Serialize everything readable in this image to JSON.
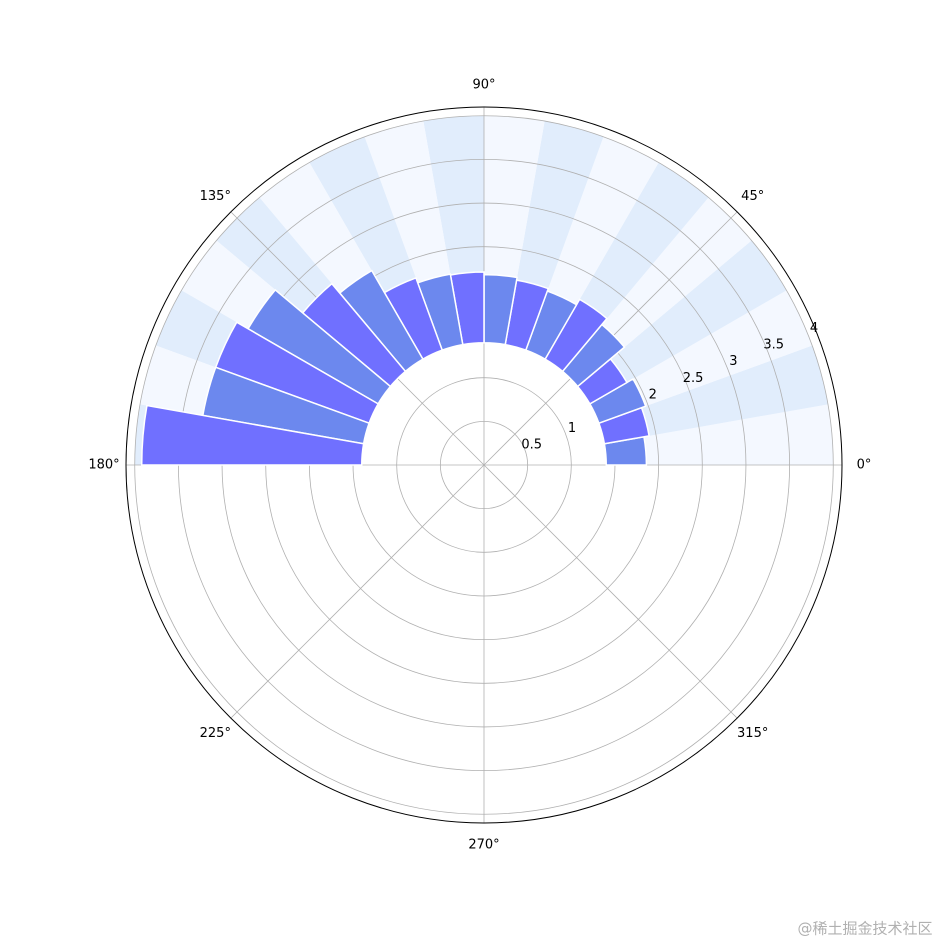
{
  "chart_data": {
    "type": "polar-bar",
    "theta_centers": [
      5,
      15,
      25,
      35,
      45,
      55,
      65,
      75,
      85,
      95,
      105,
      115,
      125,
      135,
      145,
      155,
      165,
      175
    ],
    "bar_width": 10,
    "bottom": 1.4,
    "values": [
      0.46,
      0.52,
      0.57,
      0.49,
      0.7,
      0.79,
      0.72,
      0.75,
      0.78,
      0.81,
      0.82,
      0.88,
      1.17,
      1.31,
      1.72,
      1.87,
      1.87,
      2.52
    ],
    "colors": [
      "#6c88ee",
      "#7070ff"
    ],
    "background": {
      "values": [
        2.6,
        2.6,
        2.6,
        2.6,
        2.6,
        2.6,
        2.6,
        2.6,
        2.6,
        2.6,
        2.6,
        2.6,
        2.6,
        2.6,
        2.6,
        2.6,
        2.6,
        2.6
      ],
      "colors": [
        "#f4f8ff",
        "#e1edfc"
      ]
    },
    "ylim": [
      0,
      4.1
    ],
    "yticks": [
      0.5,
      1.0,
      1.5,
      2.0,
      2.5,
      3.0,
      3.5,
      4.0
    ],
    "rlabel_angle": 22.5,
    "xticks": [
      {
        "value": 0,
        "label": "0°"
      },
      {
        "value": 45,
        "label": "45°"
      },
      {
        "value": 90,
        "label": "90°"
      },
      {
        "value": 135,
        "label": "135°"
      },
      {
        "value": 180,
        "label": "180°"
      },
      {
        "value": 225,
        "label": "225°"
      },
      {
        "value": 270,
        "label": "270°"
      },
      {
        "value": 315,
        "label": "315°"
      }
    ],
    "grid": true,
    "watermark": "@稀土掘金技术社区"
  }
}
